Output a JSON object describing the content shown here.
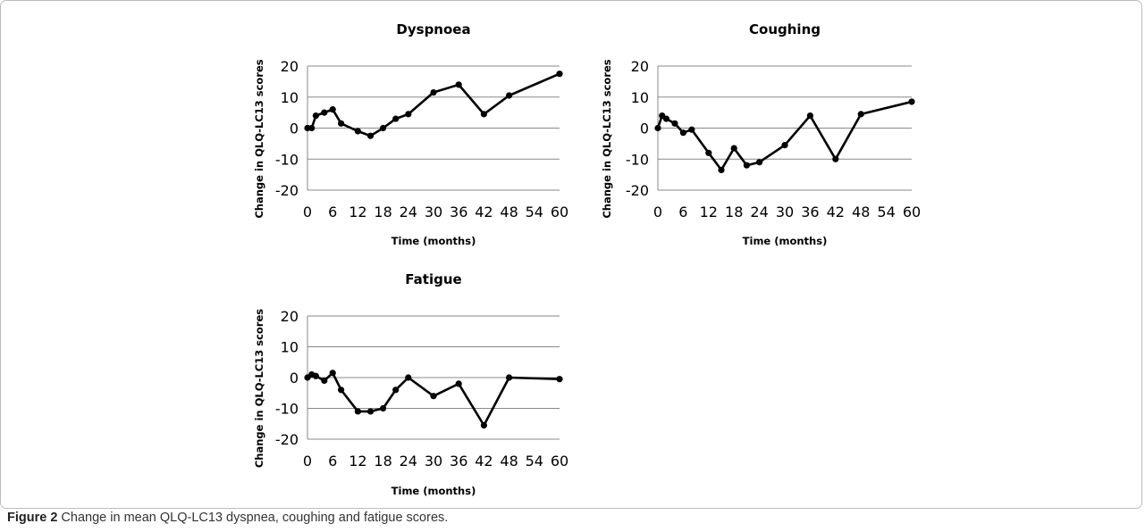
{
  "caption": {
    "label": "Figure 2",
    "text": " Change in mean QLQ-LC13 dyspnea, coughing and fatigue scores."
  },
  "chart_data": [
    {
      "type": "line",
      "title": "Dyspnoea",
      "xlabel": "Time (months)",
      "ylabel": "Change in QLQ-LC13 scores",
      "xlim": [
        0,
        60
      ],
      "ylim": [
        -20,
        20
      ],
      "xticks": [
        0,
        6,
        12,
        18,
        24,
        30,
        36,
        42,
        48,
        54,
        60
      ],
      "yticks": [
        -20,
        -10,
        0,
        10,
        20
      ],
      "grid": "horizontal",
      "series": [
        {
          "x": [
            0,
            1,
            2,
            4,
            6,
            8,
            12,
            15,
            18,
            21,
            24,
            30,
            36,
            42,
            48,
            60
          ],
          "y": [
            0,
            0,
            4,
            5,
            6,
            1.5,
            -1,
            -2.5,
            0,
            3,
            4.5,
            11.5,
            14,
            4.5,
            10.5,
            17.5
          ]
        }
      ]
    },
    {
      "type": "line",
      "title": "Coughing",
      "xlabel": "Time (months)",
      "ylabel": "Change in QLQ-LC13 scores",
      "xlim": [
        0,
        60
      ],
      "ylim": [
        -20,
        20
      ],
      "xticks": [
        0,
        6,
        12,
        18,
        24,
        30,
        36,
        42,
        48,
        54,
        60
      ],
      "yticks": [
        -20,
        -10,
        0,
        10,
        20
      ],
      "grid": "horizontal",
      "series": [
        {
          "x": [
            0,
            1,
            2,
            4,
            6,
            8,
            12,
            15,
            18,
            21,
            24,
            30,
            36,
            42,
            48,
            60
          ],
          "y": [
            0,
            4,
            3,
            1.5,
            -1.5,
            -0.5,
            -8,
            -13.5,
            -6.5,
            -12,
            -11,
            -5.5,
            4,
            -10,
            4.5,
            8.5
          ]
        }
      ]
    },
    {
      "type": "line",
      "title": "Fatigue",
      "xlabel": "Time (months)",
      "ylabel": "Change in QLQ-LC13 scores",
      "xlim": [
        0,
        60
      ],
      "ylim": [
        -20,
        20
      ],
      "xticks": [
        0,
        6,
        12,
        18,
        24,
        30,
        36,
        42,
        48,
        54,
        60
      ],
      "yticks": [
        -20,
        -10,
        0,
        10,
        20
      ],
      "grid": "horizontal",
      "series": [
        {
          "x": [
            0,
            1,
            2,
            4,
            6,
            8,
            12,
            15,
            18,
            21,
            24,
            30,
            36,
            42,
            48,
            60
          ],
          "y": [
            0,
            1,
            0.5,
            -1,
            1.5,
            -4,
            -11,
            -11,
            -10,
            -4,
            0,
            -6,
            -2,
            -15.5,
            0,
            -0.5
          ]
        }
      ]
    }
  ],
  "style": {
    "line_color": "#000000",
    "grid_color": "#888888",
    "frame_color": "#bdbdbd"
  }
}
